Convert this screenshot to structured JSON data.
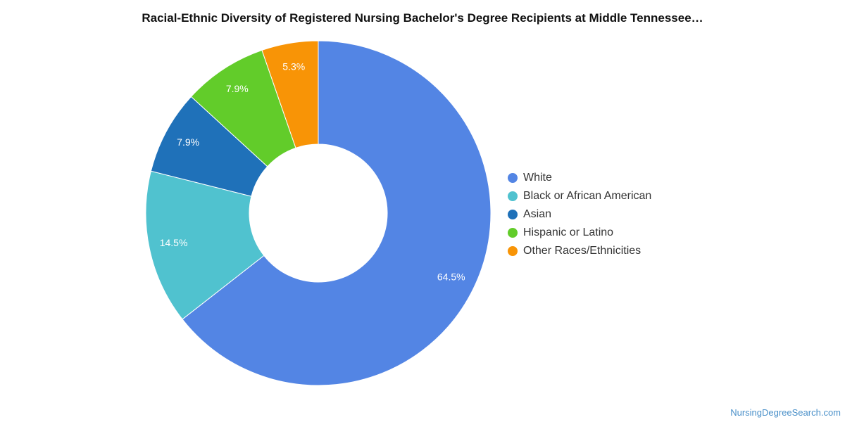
{
  "chart_data": {
    "type": "pie",
    "variant": "donut",
    "title": "Racial-Ethnic Diversity of Registered Nursing Bachelor's Degree Recipients at Middle Tennessee…",
    "categories": [
      "White",
      "Black or African American",
      "Asian",
      "Hispanic or Latino",
      "Other Races/Ethnicities"
    ],
    "values": [
      64.5,
      14.5,
      7.9,
      7.9,
      5.3
    ],
    "labels": [
      "64.5%",
      "14.5%",
      "7.9%",
      "7.9%",
      "5.3%"
    ],
    "colors": [
      "#5385e4",
      "#50c2cf",
      "#1f71b9",
      "#62cc2a",
      "#f89406"
    ],
    "legend_position": "right"
  },
  "footer": {
    "source": "NursingDegreeSearch.com"
  }
}
